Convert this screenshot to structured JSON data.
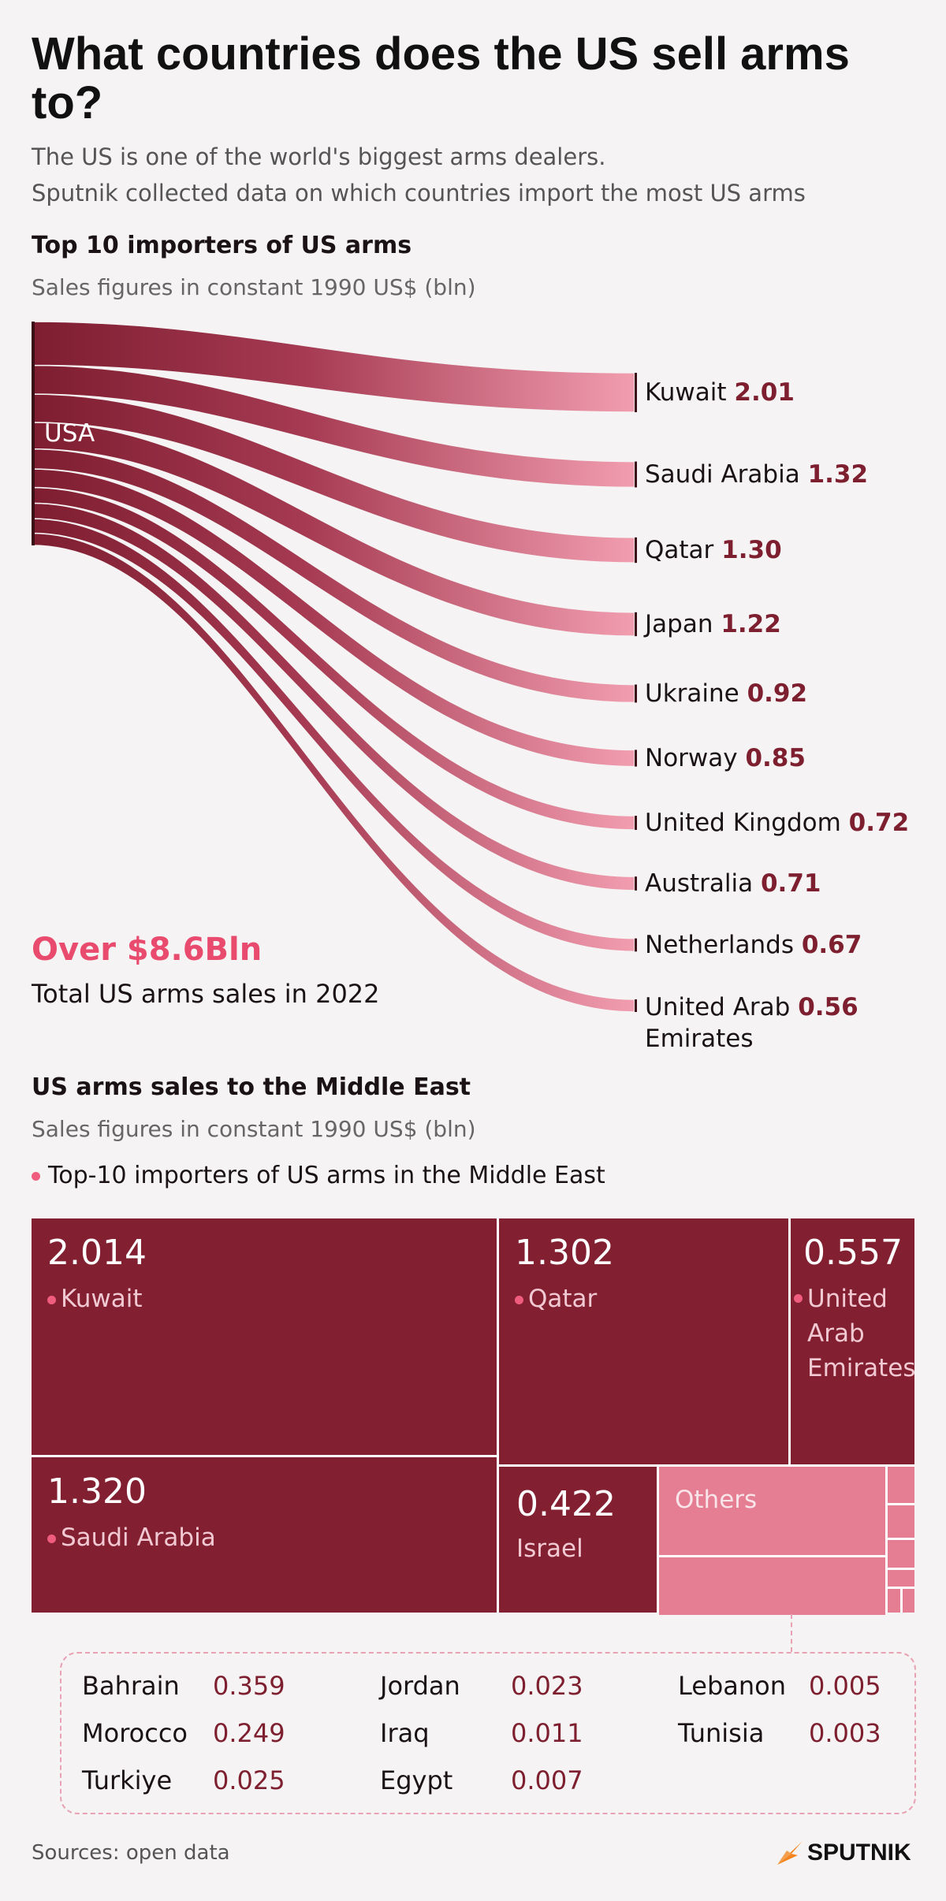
{
  "title": "What countries does the US sell arms to?",
  "subtitle_line1": "The US is one of the world's biggest arms dealers.",
  "subtitle_line2": "Sputnik collected data on which countries import the most US arms",
  "section1": {
    "heading": "Top 10 importers of US arms",
    "sub": "Sales figures in constant 1990 US$ (bln)"
  },
  "total": {
    "value": "Over $8.6Bln",
    "caption": "Total US arms sales in 2022"
  },
  "section2": {
    "heading": "US arms sales to the Middle East",
    "sub": "Sales figures in constant 1990 US$ (bln)",
    "legend": "Top-10 importers of US arms in the Middle East"
  },
  "treemap_labels": {
    "others": "Others"
  },
  "source": "Sources: open data",
  "brand": "SPUTNIK",
  "colors": {
    "dark": "#821f31",
    "pink": "#e57e93",
    "accent": "#ef5c7d",
    "value": "#7e1f30"
  },
  "chart_data": [
    {
      "type": "sankey",
      "title": "Top 10 importers of US arms",
      "source": "USA",
      "unit": "bln constant 1990 US$",
      "targets": [
        {
          "name": "Kuwait",
          "value": 2.01,
          "label": "2.01"
        },
        {
          "name": "Saudi Arabia",
          "value": 1.32,
          "label": "1.32"
        },
        {
          "name": "Qatar",
          "value": 1.3,
          "label": "1.30"
        },
        {
          "name": "Japan",
          "value": 1.22,
          "label": "1.22"
        },
        {
          "name": "Ukraine",
          "value": 0.92,
          "label": "0.92"
        },
        {
          "name": "Norway",
          "value": 0.85,
          "label": "0.85"
        },
        {
          "name": "United Kingdom",
          "value": 0.72,
          "label": "0.72"
        },
        {
          "name": "Australia",
          "value": 0.71,
          "label": "0.71"
        },
        {
          "name": "Netherlands",
          "value": 0.67,
          "label": "0.67"
        },
        {
          "name": "United Arab Emirates",
          "value": 0.56,
          "label": "0.56"
        }
      ]
    },
    {
      "type": "treemap",
      "title": "US arms sales to the Middle East",
      "unit": "bln constant 1990 US$",
      "items": [
        {
          "name": "Kuwait",
          "value": 2.014,
          "label": "2.014",
          "top10": true
        },
        {
          "name": "Saudi Arabia",
          "value": 1.32,
          "label": "1.320",
          "top10": true
        },
        {
          "name": "Qatar",
          "value": 1.302,
          "label": "1.302",
          "top10": true
        },
        {
          "name": "United Arab Emirates",
          "value": 0.557,
          "label": "0.557",
          "top10": true
        },
        {
          "name": "Israel",
          "value": 0.422,
          "label": "0.422",
          "top10": false
        }
      ],
      "others": [
        {
          "name": "Bahrain",
          "value": 0.359,
          "label": "0.359"
        },
        {
          "name": "Morocco",
          "value": 0.249,
          "label": "0.249"
        },
        {
          "name": "Turkiye",
          "value": 0.025,
          "label": "0.025"
        },
        {
          "name": "Jordan",
          "value": 0.023,
          "label": "0.023"
        },
        {
          "name": "Iraq",
          "value": 0.011,
          "label": "0.011"
        },
        {
          "name": "Egypt",
          "value": 0.007,
          "label": "0.007"
        },
        {
          "name": "Lebanon",
          "value": 0.005,
          "label": "0.005"
        },
        {
          "name": "Tunisia",
          "value": 0.003,
          "label": "0.003"
        }
      ]
    }
  ]
}
